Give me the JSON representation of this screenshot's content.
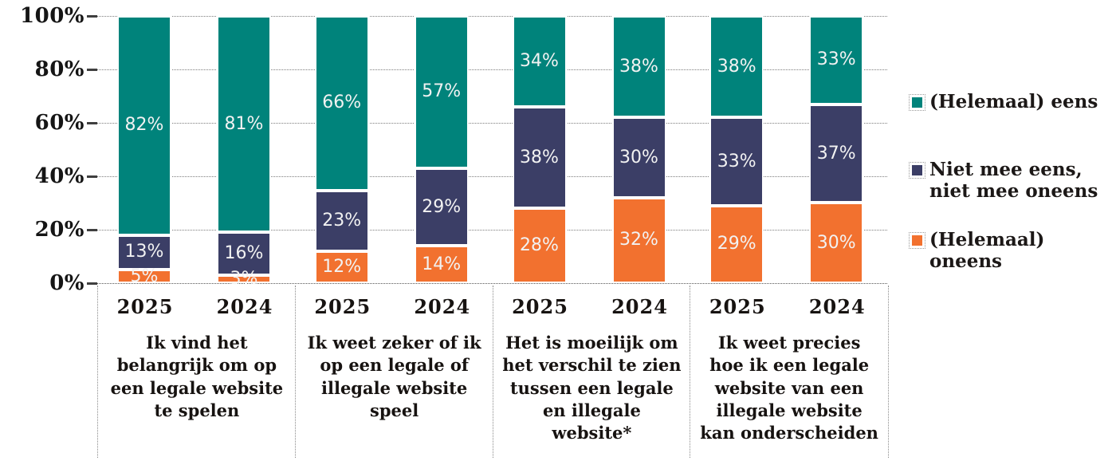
{
  "chart_data": {
    "type": "bar",
    "stacked": true,
    "unit": "%",
    "ylim": [
      0,
      100
    ],
    "y_ticks": [
      "100%",
      "80%",
      "60%",
      "40%",
      "20%",
      "0%"
    ],
    "grid": true,
    "legend_position": "right",
    "series_order": [
      "eens",
      "neutraal",
      "oneens"
    ],
    "series_labels": {
      "eens": "(Helemaal) eens",
      "neutraal": "Niet mee eens, niet mee oneens",
      "oneens": "(Helemaal) oneens"
    },
    "colors": {
      "eens": "#00837B",
      "neutraal": "#3B3E66",
      "oneens": "#F2712F"
    },
    "groups": [
      {
        "statement": "Ik vind het belangrijk om op een legale website te spelen",
        "bars": [
          {
            "year": "2025",
            "values": {
              "eens": 82,
              "neutraal": 13,
              "oneens": 5
            }
          },
          {
            "year": "2024",
            "values": {
              "eens": 81,
              "neutraal": 16,
              "oneens": 3
            }
          }
        ]
      },
      {
        "statement": "Ik weet zeker of ik op een legale of illegale website speel",
        "bars": [
          {
            "year": "2025",
            "values": {
              "eens": 66,
              "neutraal": 23,
              "oneens": 12
            }
          },
          {
            "year": "2024",
            "values": {
              "eens": 57,
              "neutraal": 29,
              "oneens": 14
            }
          }
        ]
      },
      {
        "statement": "Het is moeilijk om het verschil te zien tussen een legale en illegale website*",
        "bars": [
          {
            "year": "2025",
            "values": {
              "eens": 34,
              "neutraal": 38,
              "oneens": 28
            }
          },
          {
            "year": "2024",
            "values": {
              "eens": 38,
              "neutraal": 30,
              "oneens": 32
            }
          }
        ]
      },
      {
        "statement": "Ik weet precies hoe ik een legale website van een illegale website kan onderscheiden",
        "bars": [
          {
            "year": "2025",
            "values": {
              "eens": 38,
              "neutraal": 33,
              "oneens": 29
            }
          },
          {
            "year": "2024",
            "values": {
              "eens": 33,
              "neutraal": 37,
              "oneens": 30
            }
          }
        ]
      }
    ]
  },
  "legend": {
    "items": [
      {
        "key": "eens",
        "label": "(Helemaal) eens",
        "color": "#00837B"
      },
      {
        "key": "neutraal",
        "label": "Niet mee eens, niet mee oneens",
        "color": "#3B3E66"
      },
      {
        "key": "oneens",
        "label": "(Helemaal) oneens",
        "color": "#F2712F"
      }
    ]
  }
}
